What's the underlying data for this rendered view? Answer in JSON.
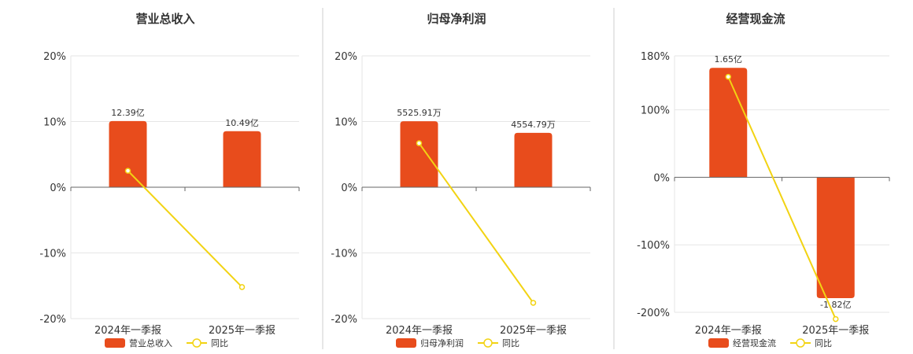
{
  "legend_yoy": "同比",
  "colors": {
    "bar": "#e84c1c",
    "line": "#f2d313",
    "grid": "#e6e6e6",
    "axis": "#666666",
    "text": "#333333"
  },
  "chart_data": [
    {
      "type": "bar",
      "title": "营业总收入",
      "categories": [
        "2024年一季报",
        "2025年一季报"
      ],
      "values": [
        12.39,
        10.49
      ],
      "value_labels": [
        "12.39亿",
        "10.49亿"
      ],
      "yoy": [
        2.5,
        -15.2
      ],
      "yticks": [
        20,
        10,
        0,
        -10,
        -20
      ],
      "ytick_labels": [
        "20%",
        "10%",
        "0%",
        "-10%",
        "-20%"
      ],
      "ylim": [
        -20,
        20
      ],
      "bar_scale": [
        0,
        24.6
      ],
      "legend": [
        "营业总收入",
        "同比"
      ]
    },
    {
      "type": "bar",
      "title": "归母净利润",
      "categories": [
        "2024年一季报",
        "2025年一季报"
      ],
      "values": [
        5525.91,
        4554.79
      ],
      "value_labels": [
        "5525.91万",
        "4554.79万"
      ],
      "yoy": [
        6.7,
        -17.6
      ],
      "yticks": [
        20,
        10,
        0,
        -10,
        -20
      ],
      "ytick_labels": [
        "20%",
        "10%",
        "0%",
        "-10%",
        "-20%"
      ],
      "ylim": [
        -20,
        20
      ],
      "bar_scale": [
        0,
        11000
      ],
      "legend": [
        "归母净利润",
        "同比"
      ]
    },
    {
      "type": "bar",
      "title": "经营现金流",
      "categories": [
        "2024年一季报",
        "2025年一季报"
      ],
      "values": [
        1.65,
        -1.82
      ],
      "value_labels": [
        "1.65亿",
        "-1.82亿"
      ],
      "yoy": [
        149,
        -210
      ],
      "yticks": [
        180,
        100,
        0,
        -100,
        -200
      ],
      "ytick_labels": [
        "180%",
        "100%",
        "0%",
        "-100%",
        "-200%"
      ],
      "ylim": [
        -210,
        180
      ],
      "bar_scale": [
        0,
        1.83
      ],
      "legend": [
        "经营现金流",
        "同比"
      ]
    }
  ]
}
